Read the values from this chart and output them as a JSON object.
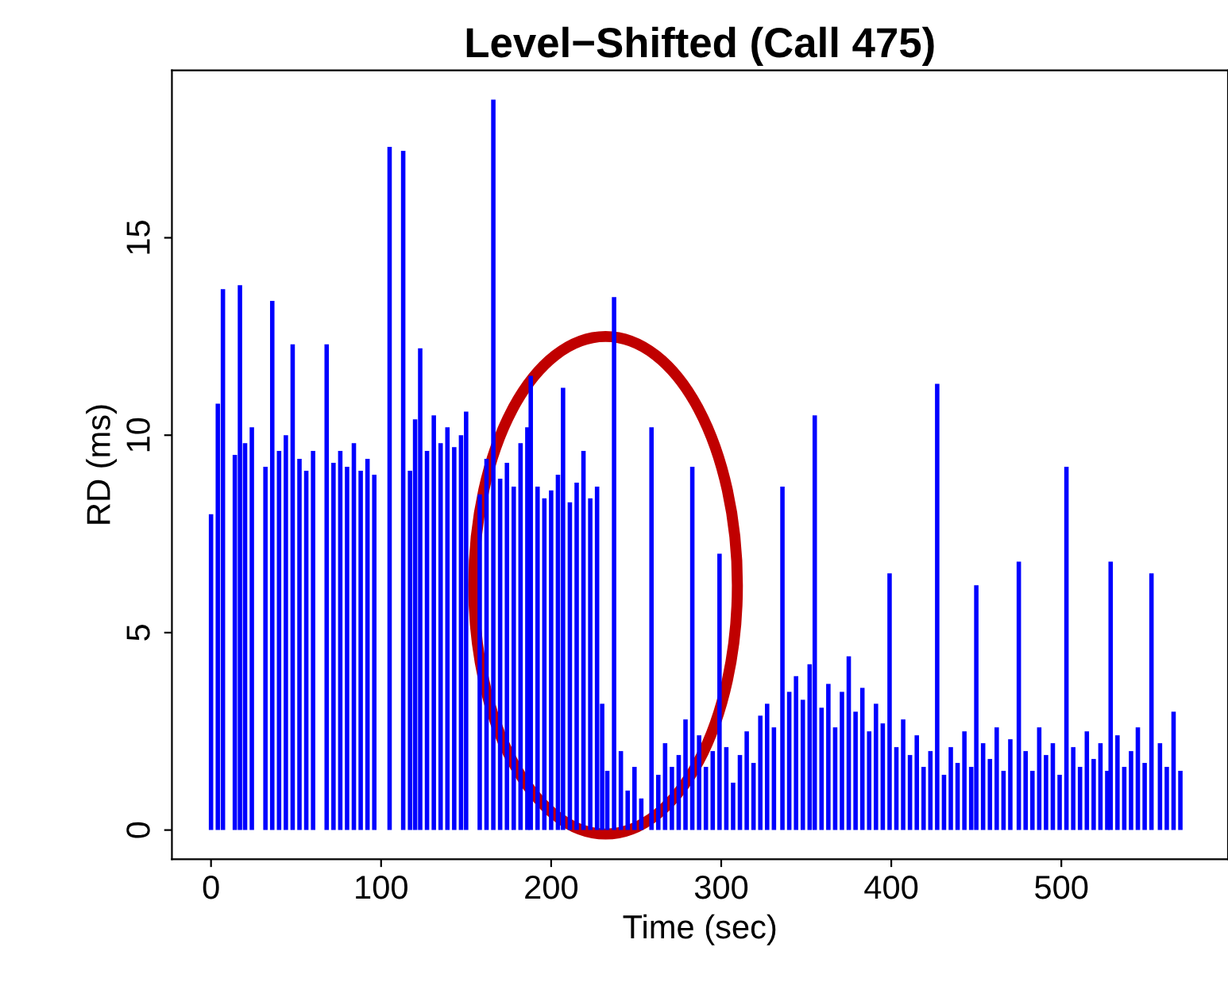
{
  "chart_data": {
    "type": "bar",
    "title": "Level−Shifted (Call 475)",
    "xlabel": "Time (sec)",
    "ylabel": "RD (ms)",
    "color": "#0000ff",
    "x": [
      0,
      4,
      7,
      11,
      14,
      17,
      20,
      24,
      29,
      32,
      36,
      40,
      44,
      48,
      52,
      56,
      60,
      64,
      68,
      72,
      76,
      80,
      84,
      88,
      92,
      96,
      100,
      105,
      109,
      113,
      117,
      120,
      123,
      127,
      131,
      135,
      139,
      143,
      147,
      150,
      154,
      158,
      162,
      166,
      170,
      174,
      178,
      182,
      186,
      188,
      192,
      196,
      200,
      204,
      207,
      211,
      215,
      219,
      223,
      227,
      230,
      233,
      237,
      241,
      245,
      249,
      253,
      259,
      263,
      267,
      271,
      275,
      279,
      283,
      287,
      291,
      295,
      299,
      303,
      307,
      311,
      315,
      319,
      323,
      327,
      331,
      336,
      340,
      344,
      348,
      352,
      355,
      359,
      363,
      367,
      371,
      375,
      379,
      383,
      387,
      391,
      395,
      399,
      403,
      407,
      411,
      415,
      419,
      423,
      427,
      431,
      435,
      439,
      443,
      447,
      450,
      454,
      458,
      462,
      466,
      470,
      475,
      479,
      483,
      487,
      491,
      495,
      499,
      503,
      507,
      511,
      515,
      519,
      523,
      527,
      529,
      533,
      537,
      541,
      545,
      549,
      553,
      558,
      562,
      566,
      570
    ],
    "values": [
      8,
      10.8,
      13.7,
      0,
      9.5,
      13.8,
      9.8,
      10.2,
      0,
      9.2,
      13.4,
      9.6,
      10,
      12.3,
      9.4,
      9.1,
      9.6,
      0,
      12.3,
      9.3,
      9.6,
      9.2,
      9.8,
      9.1,
      9.4,
      9.0,
      0,
      17.3,
      0,
      17.2,
      9.1,
      10.4,
      12.2,
      9.6,
      10.5,
      9.8,
      10.2,
      9.7,
      10,
      10.6,
      0,
      8.5,
      9.4,
      18.5,
      8.9,
      9.3,
      8.7,
      9.8,
      10.2,
      11.5,
      8.7,
      8.4,
      8.6,
      9.0,
      11.2,
      8.3,
      8.8,
      9.6,
      8.4,
      8.7,
      3.2,
      1.5,
      13.5,
      2.0,
      1.0,
      1.6,
      0.8,
      10.2,
      1.4,
      2.2,
      1.6,
      1.9,
      2.8,
      9.2,
      2.4,
      1.6,
      2.0,
      7.0,
      2.1,
      1.2,
      1.9,
      2.5,
      1.7,
      2.9,
      3.2,
      2.6,
      8.7,
      3.5,
      3.9,
      3.3,
      4.2,
      10.5,
      3.1,
      3.7,
      2.6,
      3.5,
      4.4,
      3.0,
      3.6,
      2.5,
      3.2,
      2.7,
      6.5,
      2.1,
      2.8,
      1.9,
      2.4,
      1.6,
      2.0,
      11.3,
      1.4,
      2.1,
      1.7,
      2.5,
      1.6,
      6.2,
      2.2,
      1.8,
      2.6,
      1.5,
      2.3,
      6.8,
      2.0,
      1.5,
      2.6,
      1.9,
      2.2,
      1.4,
      9.2,
      2.1,
      1.6,
      2.5,
      1.8,
      2.2,
      1.5,
      6.8,
      2.4,
      1.6,
      2.0,
      2.6,
      1.7,
      6.5,
      2.2,
      1.6,
      3.0,
      1.5
    ],
    "xlim": [
      -23,
      598
    ],
    "ylim": [
      -0.74,
      19.24
    ],
    "xticks": [
      0,
      100,
      200,
      300,
      400,
      500
    ],
    "yticks": [
      0,
      5,
      10,
      15
    ],
    "grid": false
  }
}
